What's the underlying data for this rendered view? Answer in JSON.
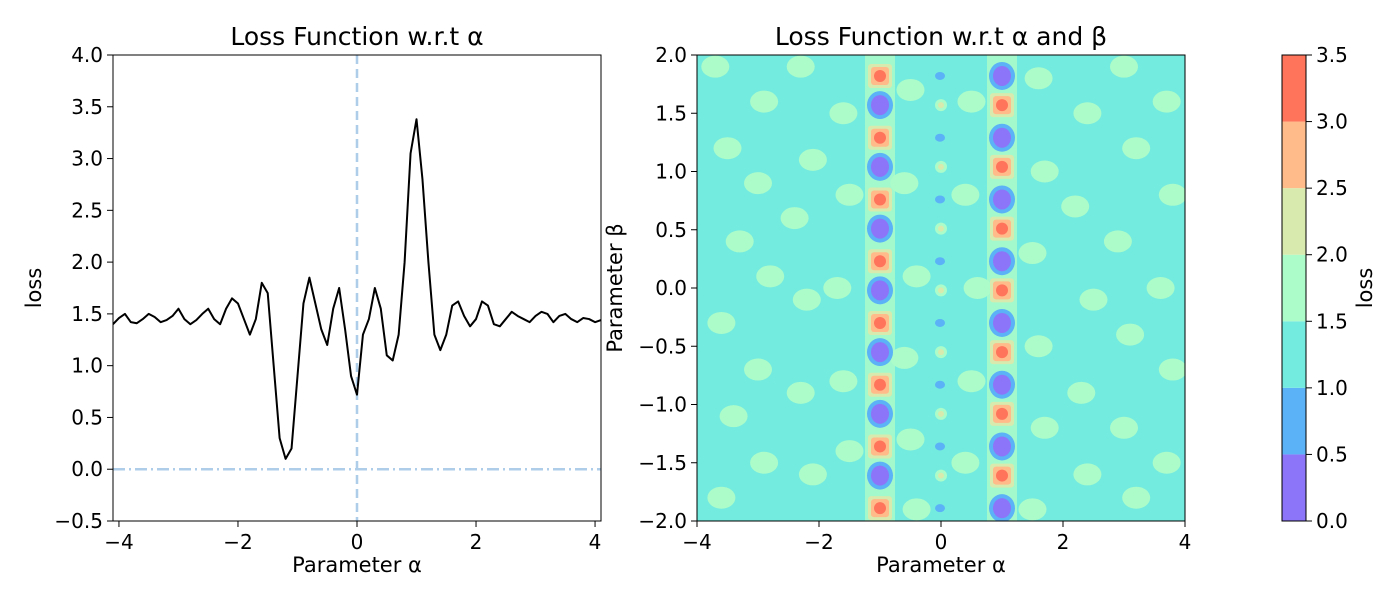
{
  "chart_data": [
    {
      "type": "line",
      "title": "Loss Function w.r.t α",
      "xlabel": "Parameter α",
      "ylabel": "loss",
      "xlim": [
        -4.1,
        4.1
      ],
      "ylim": [
        -0.5,
        4.0
      ],
      "xticks": [
        -4,
        -2,
        0,
        2,
        4
      ],
      "yticks": [
        -0.5,
        0.0,
        0.5,
        1.0,
        1.5,
        2.0,
        2.5,
        3.0,
        3.5,
        4.0
      ],
      "ytick_labels": [
        "−0.5",
        "0.0",
        "0.5",
        "1.0",
        "1.5",
        "2.0",
        "2.5",
        "3.0",
        "3.5",
        "4.0"
      ],
      "xtick_labels": [
        "−4",
        "−2",
        "0",
        "2",
        "4"
      ],
      "reference_lines": [
        {
          "orientation": "vertical",
          "value": 0,
          "style": "dashed",
          "color": "#aecde8"
        },
        {
          "orientation": "horizontal",
          "value": 0,
          "style": "dash-dot",
          "color": "#aecde8"
        }
      ],
      "grid": false,
      "series": [
        {
          "color": "#000000",
          "x": [
            -4.1,
            -4.0,
            -3.9,
            -3.8,
            -3.7,
            -3.6,
            -3.5,
            -3.4,
            -3.3,
            -3.2,
            -3.1,
            -3.0,
            -2.9,
            -2.8,
            -2.7,
            -2.6,
            -2.5,
            -2.4,
            -2.3,
            -2.2,
            -2.1,
            -2.0,
            -1.9,
            -1.8,
            -1.7,
            -1.6,
            -1.5,
            -1.4,
            -1.3,
            -1.2,
            -1.1,
            -1.0,
            -0.9,
            -0.8,
            -0.7,
            -0.6,
            -0.5,
            -0.4,
            -0.3,
            -0.2,
            -0.1,
            0.0,
            0.1,
            0.2,
            0.3,
            0.4,
            0.5,
            0.6,
            0.7,
            0.8,
            0.9,
            1.0,
            1.1,
            1.2,
            1.3,
            1.4,
            1.5,
            1.6,
            1.7,
            1.8,
            1.9,
            2.0,
            2.1,
            2.2,
            2.3,
            2.4,
            2.5,
            2.6,
            2.7,
            2.8,
            2.9,
            3.0,
            3.1,
            3.2,
            3.3,
            3.4,
            3.5,
            3.6,
            3.7,
            3.8,
            3.9,
            4.0,
            4.1
          ],
          "y": [
            1.4,
            1.46,
            1.5,
            1.42,
            1.41,
            1.45,
            1.5,
            1.47,
            1.42,
            1.44,
            1.48,
            1.55,
            1.45,
            1.4,
            1.44,
            1.5,
            1.55,
            1.45,
            1.4,
            1.55,
            1.65,
            1.6,
            1.45,
            1.3,
            1.45,
            1.8,
            1.7,
            1.0,
            0.3,
            0.1,
            0.2,
            0.9,
            1.6,
            1.85,
            1.6,
            1.35,
            1.2,
            1.55,
            1.75,
            1.35,
            0.9,
            0.72,
            1.3,
            1.45,
            1.75,
            1.55,
            1.1,
            1.05,
            1.3,
            2.0,
            3.05,
            3.38,
            2.8,
            2.0,
            1.3,
            1.15,
            1.3,
            1.58,
            1.62,
            1.48,
            1.38,
            1.45,
            1.62,
            1.58,
            1.4,
            1.38,
            1.45,
            1.52,
            1.48,
            1.45,
            1.42,
            1.48,
            1.52,
            1.5,
            1.42,
            1.48,
            1.5,
            1.45,
            1.42,
            1.46,
            1.45,
            1.42,
            1.44
          ]
        }
      ]
    },
    {
      "type": "heatmap",
      "subtype": "filled-contour",
      "title": "Loss Function w.r.t α and β",
      "xlabel": "Parameter α",
      "ylabel": "Parameter β",
      "xlim": [
        -4,
        4
      ],
      "ylim": [
        -2,
        2
      ],
      "xticks": [
        -4,
        -2,
        0,
        2,
        4
      ],
      "xtick_labels": [
        "−4",
        "−2",
        "0",
        "2",
        "4"
      ],
      "yticks": [
        -2.0,
        -1.5,
        -1.0,
        -0.5,
        0.0,
        0.5,
        1.0,
        1.5,
        2.0
      ],
      "ytick_labels": [
        "−2.0",
        "−1.5",
        "−1.0",
        "−0.5",
        "0.0",
        "0.5",
        "1.0",
        "1.5",
        "2.0"
      ],
      "levels": [
        0.0,
        0.5,
        1.0,
        1.5,
        2.0,
        2.5,
        3.0,
        3.5
      ],
      "level_colors": [
        "#8c75f8",
        "#5bb2f6",
        "#74ebdf",
        "#abfcc9",
        "#d8eaad",
        "#ffbb8a",
        "#ff745b"
      ],
      "background_level_color": "#74ebdf",
      "colorbar": {
        "label": "loss",
        "ticks": [
          0.0,
          0.5,
          1.0,
          1.5,
          2.0,
          2.5,
          3.0,
          3.5
        ],
        "tick_labels": [
          "0.0",
          "0.5",
          "1.0",
          "1.5",
          "2.0",
          "2.5",
          "3.0",
          "3.5"
        ]
      },
      "features": {
        "columns": [
          {
            "alpha": -1.0,
            "pattern": "alternating low (≈0.0–0.5) and high (≈3.0–3.5) cells",
            "high_beta_start": 1.82,
            "low_beta_start": 1.57,
            "spacing": 0.53
          },
          {
            "alpha": 1.0,
            "pattern": "alternating low (≈0.0–0.5) and high (≈3.0–3.5) cells",
            "high_beta_start": 1.57,
            "low_beta_start": 1.82,
            "spacing": 0.53
          },
          {
            "alpha": 0.0,
            "pattern": "small blue (≈0.5–1.0) and pale (≈2.0–2.5) spots",
            "blue_beta_start": 1.82,
            "pale_beta_start": 1.57,
            "spacing": 0.53
          }
        ],
        "background_patches": [
          [
            -3.7,
            1.9
          ],
          [
            -3.5,
            1.2
          ],
          [
            -3.3,
            0.4
          ],
          [
            -3.6,
            -0.3
          ],
          [
            -3.4,
            -1.1
          ],
          [
            -3.6,
            -1.8
          ],
          [
            -2.9,
            1.6
          ],
          [
            -3.0,
            0.9
          ],
          [
            -2.8,
            0.1
          ],
          [
            -3.0,
            -0.7
          ],
          [
            -2.9,
            -1.5
          ],
          [
            -2.3,
            1.9
          ],
          [
            -2.1,
            1.1
          ],
          [
            -2.4,
            0.6
          ],
          [
            -2.2,
            -0.1
          ],
          [
            -2.3,
            -0.9
          ],
          [
            -2.1,
            -1.6
          ],
          [
            -1.6,
            1.5
          ],
          [
            -1.5,
            0.8
          ],
          [
            -1.7,
            0.0
          ],
          [
            -1.6,
            -0.8
          ],
          [
            -1.5,
            -1.4
          ],
          [
            -0.5,
            1.7
          ],
          [
            -0.6,
            0.9
          ],
          [
            -0.4,
            0.1
          ],
          [
            -0.6,
            -0.6
          ],
          [
            -0.5,
            -1.3
          ],
          [
            -0.4,
            -1.9
          ],
          [
            0.5,
            1.6
          ],
          [
            0.4,
            0.8
          ],
          [
            0.6,
            0.0
          ],
          [
            0.5,
            -0.8
          ],
          [
            0.4,
            -1.5
          ],
          [
            1.6,
            1.8
          ],
          [
            1.7,
            1.0
          ],
          [
            1.5,
            0.3
          ],
          [
            1.6,
            -0.5
          ],
          [
            1.7,
            -1.2
          ],
          [
            1.5,
            -1.9
          ],
          [
            2.4,
            1.5
          ],
          [
            2.2,
            0.7
          ],
          [
            2.5,
            -0.1
          ],
          [
            2.3,
            -0.9
          ],
          [
            2.4,
            -1.6
          ],
          [
            3.0,
            1.9
          ],
          [
            3.2,
            1.2
          ],
          [
            2.9,
            0.4
          ],
          [
            3.1,
            -0.4
          ],
          [
            3.0,
            -1.2
          ],
          [
            3.2,
            -1.8
          ],
          [
            3.7,
            1.6
          ],
          [
            3.8,
            0.8
          ],
          [
            3.6,
            0.0
          ],
          [
            3.8,
            -0.7
          ],
          [
            3.7,
            -1.5
          ]
        ]
      }
    }
  ]
}
